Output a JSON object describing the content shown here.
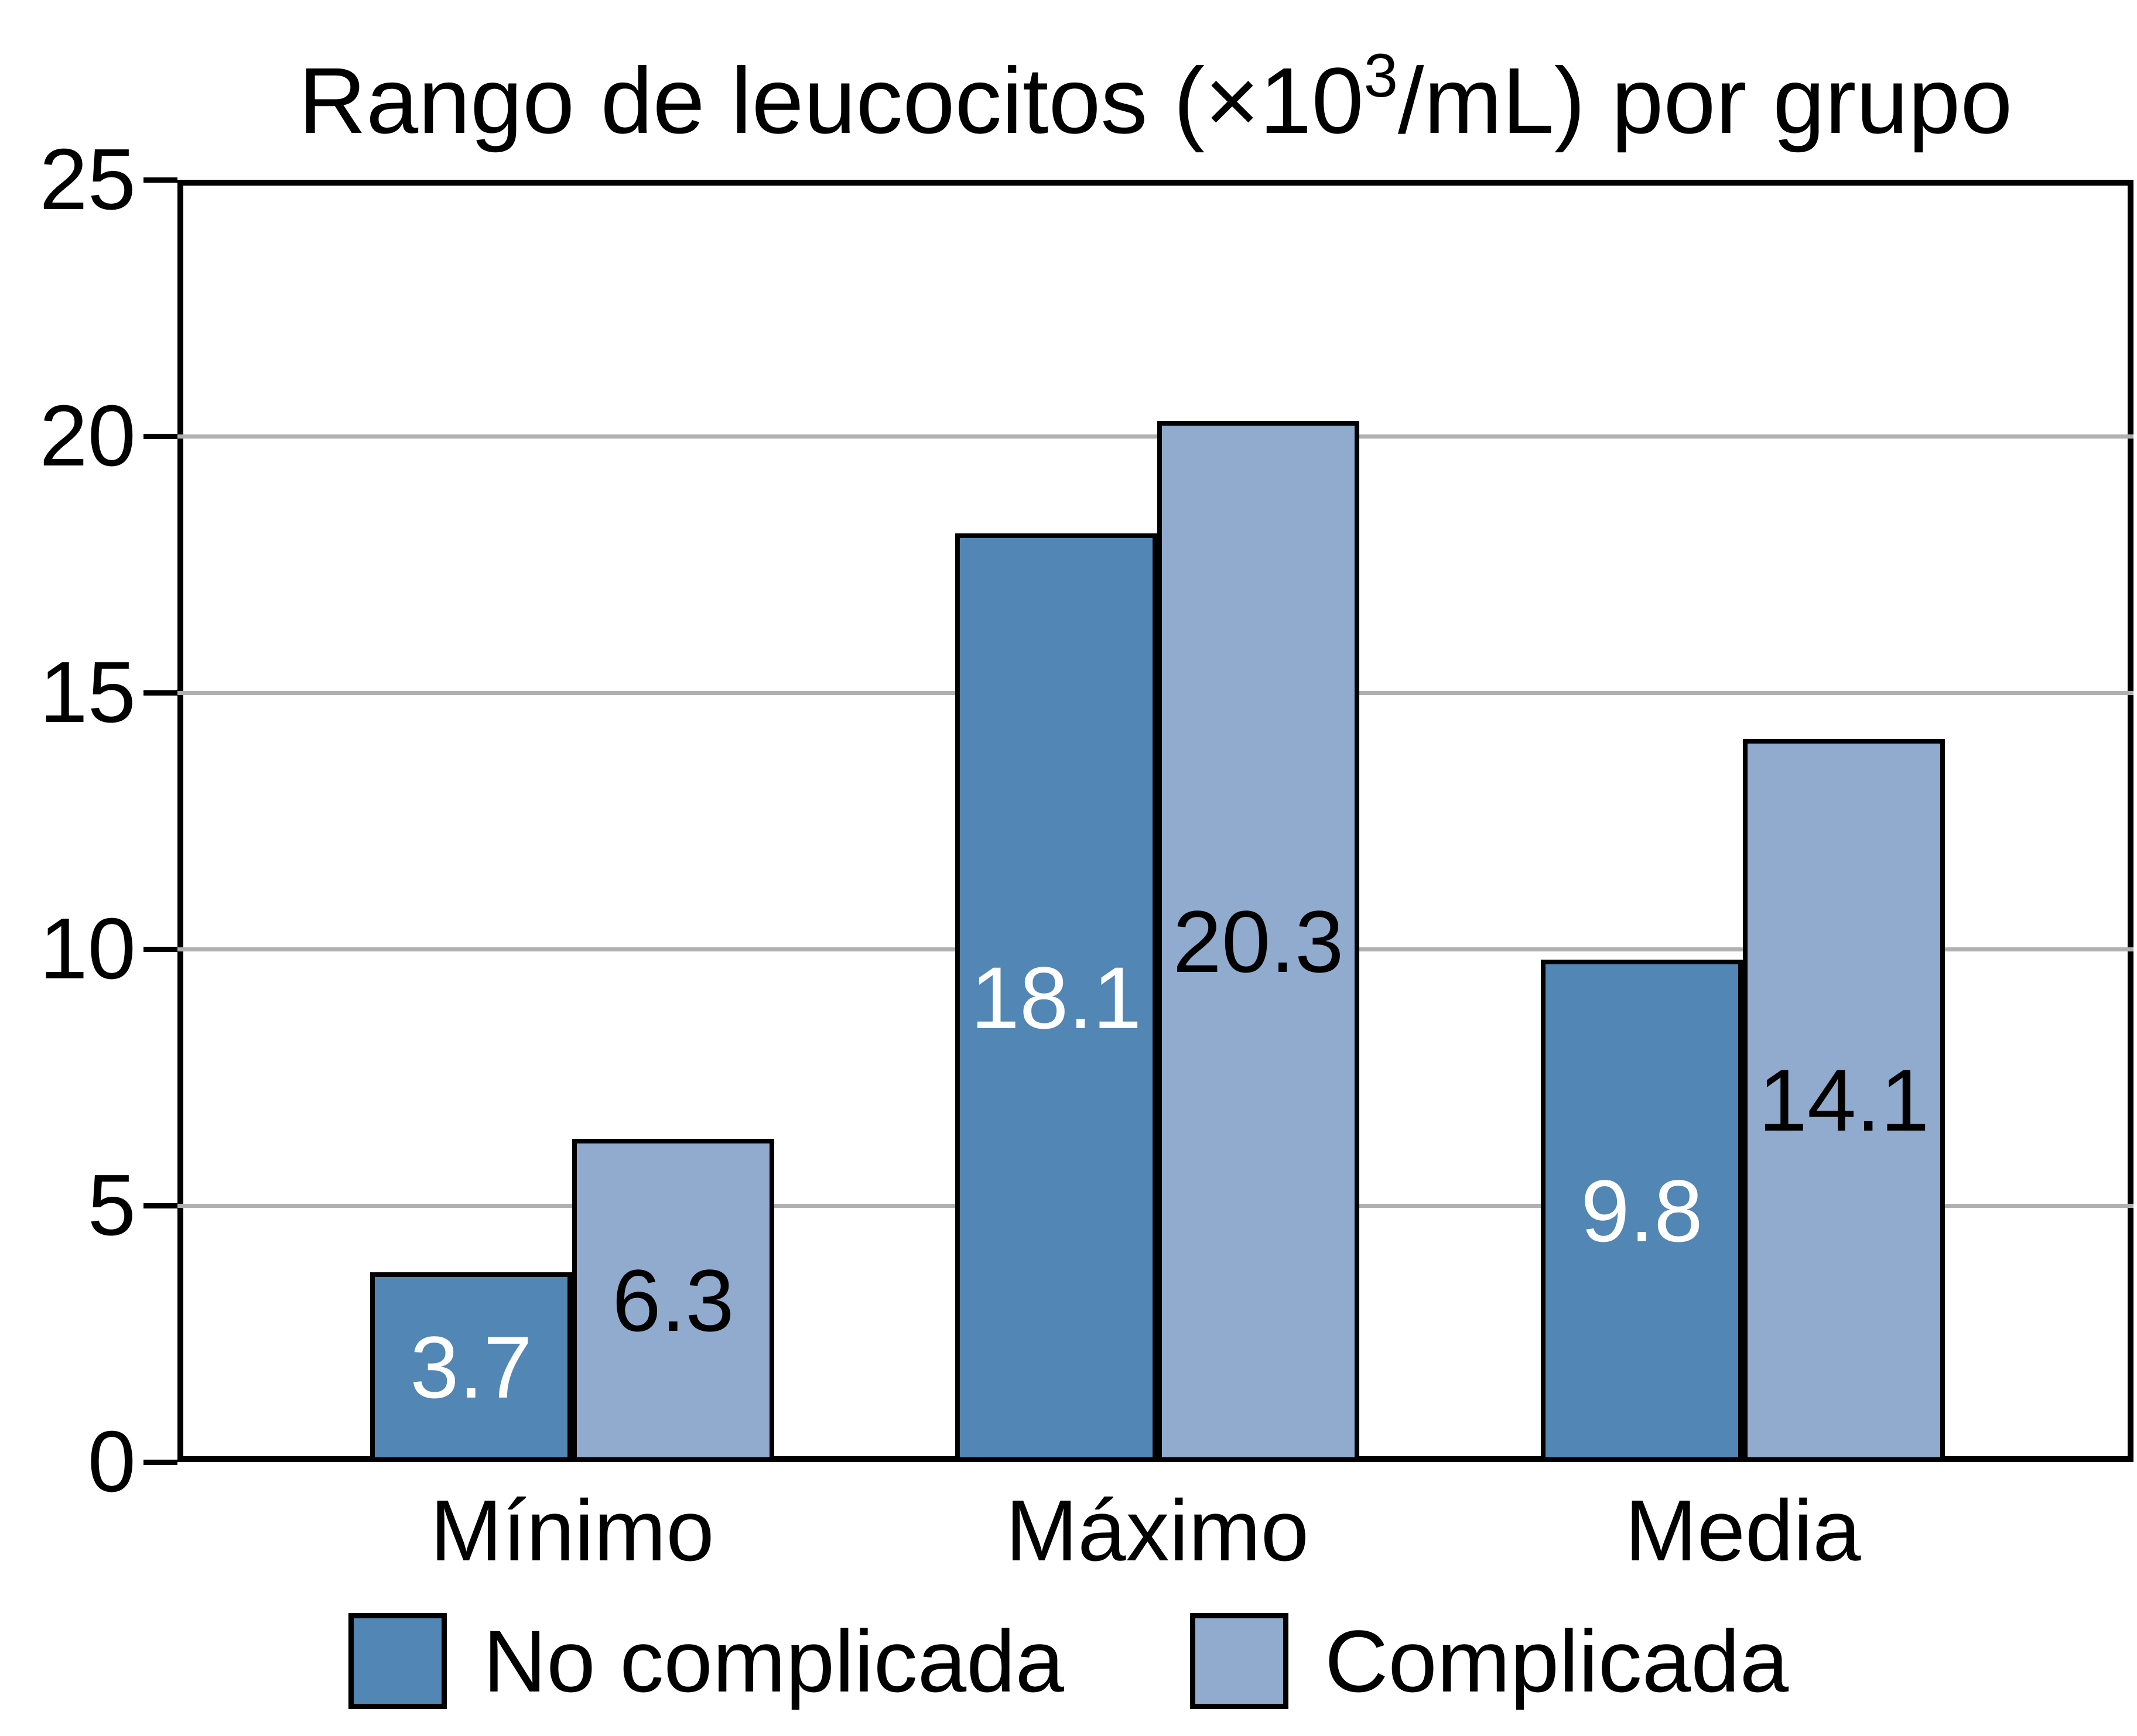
{
  "title": {
    "pre": "Rango de leucocitos (×10",
    "sup": "3",
    "post": "/mL) por grupo"
  },
  "chart_data": {
    "type": "bar",
    "title": "Rango de leucocitos (×10³/mL) por grupo",
    "categories": [
      "Mínimo",
      "Máximo",
      "Media"
    ],
    "series": [
      {
        "name": "No complicada",
        "color": "#5286b4",
        "label_color": "#ffffff",
        "values": [
          3.7,
          18.1,
          9.8
        ]
      },
      {
        "name": "Complicada",
        "color": "#90abce",
        "label_color": "#000000",
        "values": [
          6.3,
          20.3,
          14.1
        ]
      }
    ],
    "ylim": [
      0,
      25
    ],
    "yticks": [
      25,
      20,
      15,
      10,
      5,
      0
    ],
    "grid": "horizontal",
    "gridline_color": "#b0b0b0",
    "bar_border_color": "#000000",
    "legend_position": "bottom",
    "value_labels": "centered-in-bar"
  }
}
